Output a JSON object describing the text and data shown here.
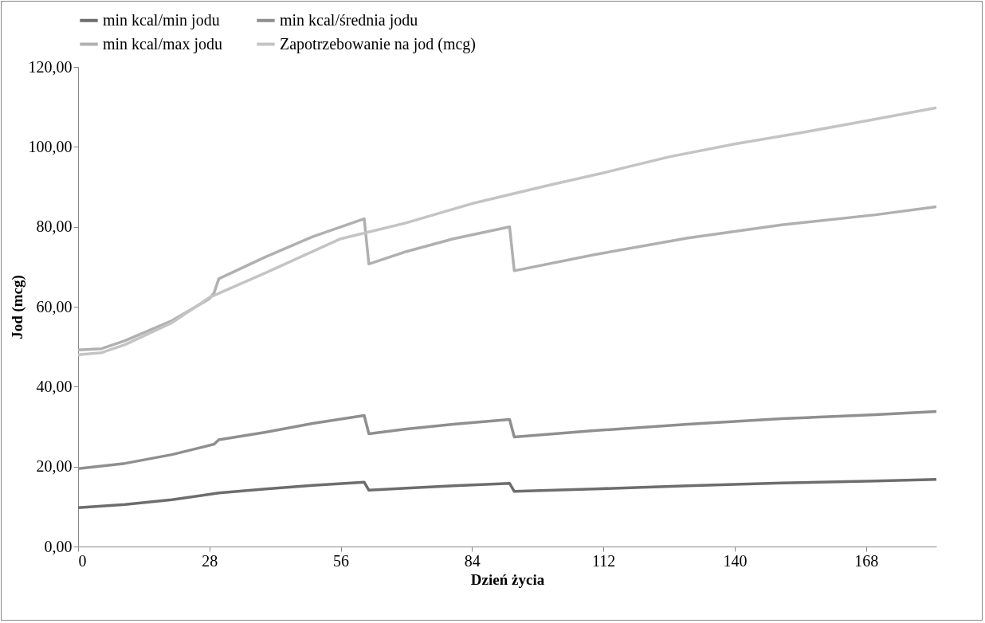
{
  "chart_data": {
    "type": "line",
    "xlabel": "Dzień życia",
    "ylabel": "Jod (mcg)",
    "xlim": [
      0,
      183
    ],
    "xticks": [
      0,
      28,
      56,
      84,
      112,
      140,
      168
    ],
    "ylim": [
      0,
      120
    ],
    "yticks": [
      {
        "value": 0,
        "label": "0,00"
      },
      {
        "value": 20,
        "label": "20,00"
      },
      {
        "value": 40,
        "label": "40,00"
      },
      {
        "value": 60,
        "label": "60,00"
      },
      {
        "value": 80,
        "label": "80,00"
      },
      {
        "value": 100,
        "label": "100,00"
      },
      {
        "value": 120,
        "label": "120,00"
      }
    ],
    "grid": false,
    "legend": "top",
    "line_style": "solid",
    "series": [
      {
        "name": "min kcal/min  jodu",
        "color": "#6d6d6d",
        "x": [
          0,
          10,
          20,
          30,
          40,
          50,
          61,
          62,
          70,
          80,
          92,
          93,
          110,
          130,
          150,
          170,
          183
        ],
        "values": [
          9.7,
          10.5,
          11.7,
          13.4,
          14.4,
          15.3,
          16.1,
          14.1,
          14.6,
          15.2,
          15.8,
          13.8,
          14.4,
          15.2,
          15.9,
          16.4,
          16.8
        ]
      },
      {
        "name": "min kcal/średnia jodu",
        "color": "#8f8f8f",
        "x": [
          0,
          10,
          20,
          29,
          30,
          40,
          50,
          61,
          62,
          70,
          80,
          92,
          93,
          110,
          130,
          150,
          170,
          183
        ],
        "values": [
          19.5,
          20.8,
          23.0,
          25.6,
          26.7,
          28.6,
          30.8,
          32.8,
          28.2,
          29.4,
          30.6,
          31.8,
          27.4,
          29.0,
          30.6,
          32.0,
          33.0,
          33.8
        ]
      },
      {
        "name": "min kcal/max  jodu",
        "color": "#b0b0b0",
        "x": [
          0,
          5,
          10,
          20,
          28,
          29,
          30,
          40,
          50,
          61,
          62,
          70,
          80,
          92,
          93,
          110,
          130,
          150,
          170,
          183
        ],
        "values": [
          49.2,
          49.5,
          51.5,
          56.5,
          62,
          63.5,
          67,
          72.5,
          77.5,
          82,
          70.7,
          73.8,
          77,
          80,
          69,
          73,
          77.2,
          80.5,
          83,
          85
        ]
      },
      {
        "name": "Zapotrzebowanie na jod (mcg)",
        "color": "#c4c4c4",
        "x": [
          0,
          5,
          10,
          20,
          28,
          40,
          56,
          70,
          84,
          100,
          112,
          126,
          140,
          154,
          168,
          183
        ],
        "values": [
          48,
          48.5,
          50.5,
          56,
          62.3,
          68.5,
          77,
          81,
          85.8,
          90.3,
          93.5,
          97.5,
          100.7,
          103.5,
          106.5,
          109.8
        ]
      }
    ]
  }
}
